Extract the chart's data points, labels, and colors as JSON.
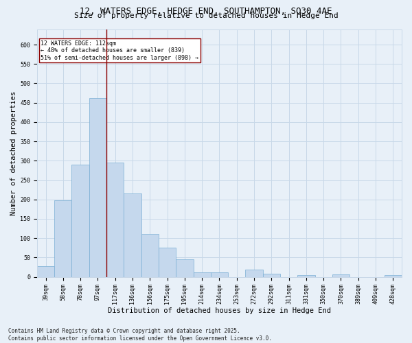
{
  "title_line1": "12, WATERS EDGE, HEDGE END, SOUTHAMPTON, SO30 4AE",
  "title_line2": "Size of property relative to detached houses in Hedge End",
  "xlabel": "Distribution of detached houses by size in Hedge End",
  "ylabel": "Number of detached properties",
  "categories": [
    "39sqm",
    "58sqm",
    "78sqm",
    "97sqm",
    "117sqm",
    "136sqm",
    "156sqm",
    "175sqm",
    "195sqm",
    "214sqm",
    "234sqm",
    "253sqm",
    "272sqm",
    "292sqm",
    "311sqm",
    "331sqm",
    "350sqm",
    "370sqm",
    "389sqm",
    "409sqm",
    "428sqm"
  ],
  "values": [
    28,
    197,
    290,
    462,
    295,
    216,
    111,
    75,
    45,
    12,
    11,
    0,
    18,
    9,
    0,
    5,
    0,
    6,
    0,
    0,
    5
  ],
  "bar_color": "#c5d8ed",
  "bar_edge_color": "#7bafd4",
  "vline_x": 3.5,
  "vline_color": "#8b0000",
  "annotation_text": "12 WATERS EDGE: 112sqm\n← 48% of detached houses are smaller (839)\n51% of semi-detached houses are larger (898) →",
  "annotation_box_color": "white",
  "annotation_box_edge": "#8b0000",
  "ylim": [
    0,
    640
  ],
  "yticks": [
    0,
    50,
    100,
    150,
    200,
    250,
    300,
    350,
    400,
    450,
    500,
    550,
    600
  ],
  "grid_color": "#c8d8e8",
  "bg_color": "#e8f0f8",
  "footer": "Contains HM Land Registry data © Crown copyright and database right 2025.\nContains public sector information licensed under the Open Government Licence v3.0.",
  "title_fontsize": 9,
  "subtitle_fontsize": 8,
  "axis_label_fontsize": 7.5,
  "tick_fontsize": 6,
  "annotation_fontsize": 6,
  "footer_fontsize": 5.5
}
